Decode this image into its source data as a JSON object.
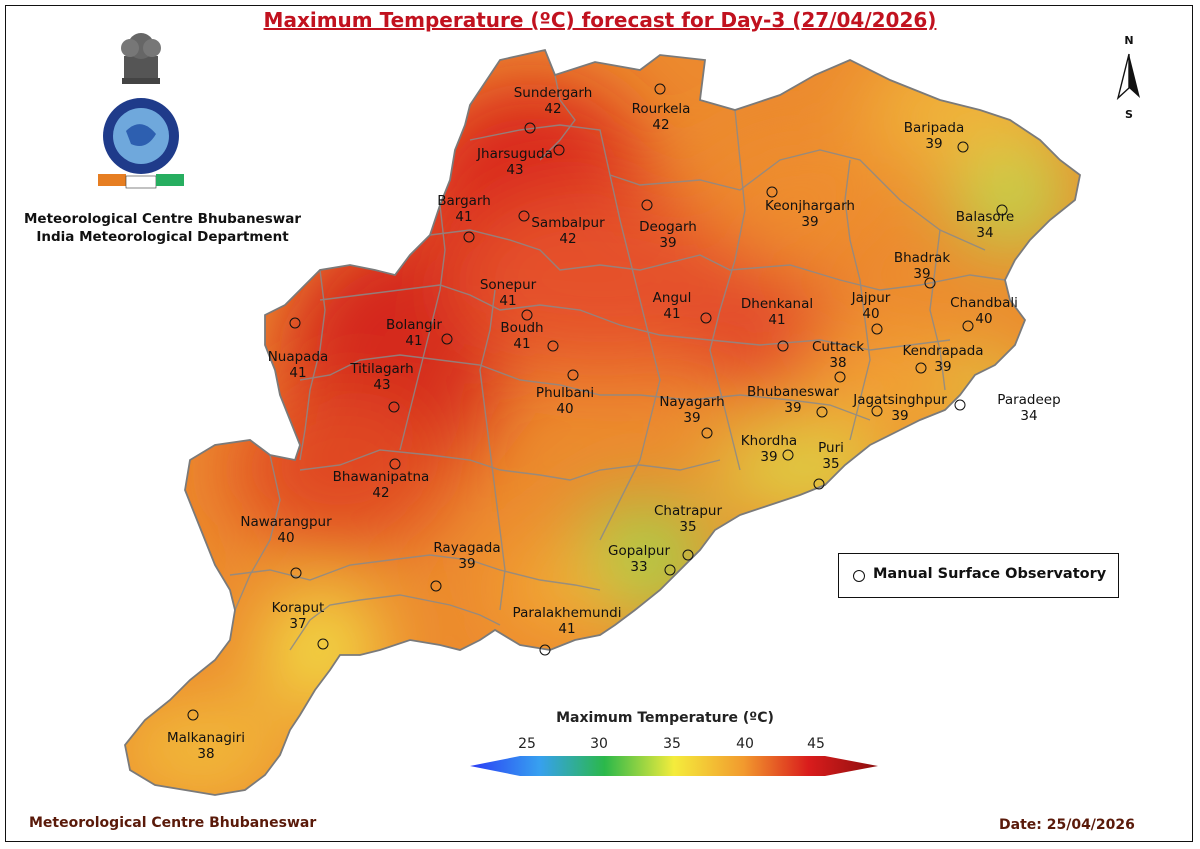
{
  "title": "Maximum Temperature (ºC) forecast for Day-3 (27/04/2026)",
  "organization": {
    "line1": "Meteorological Centre Bhubaneswar",
    "line2": "India Meteorological Department"
  },
  "footer": {
    "left": "Meteorological Centre Bhubaneswar",
    "right": "Date: 25/04/2026"
  },
  "north_arrow": {
    "top": "N",
    "bottom": "S"
  },
  "legend": {
    "symbol_label": "Manual Surface Observatory"
  },
  "colorbar": {
    "title": "Maximum Temperature (ºC)",
    "ticks": [
      "25",
      "30",
      "35",
      "40",
      "45"
    ],
    "colors": [
      "#2a3cf5",
      "#37a0f0",
      "#2bb84a",
      "#f4ec3c",
      "#f29a2e",
      "#d91c1c",
      "#8c0f0f"
    ]
  },
  "stations": [
    {
      "name": "Sundergarh",
      "temp": "42"
    },
    {
      "name": "Rourkela",
      "temp": "42"
    },
    {
      "name": "Jharsuguda",
      "temp": "43"
    },
    {
      "name": "Bargarh",
      "temp": "41"
    },
    {
      "name": "Sambalpur",
      "temp": "42"
    },
    {
      "name": "Deogarh",
      "temp": "39"
    },
    {
      "name": "Keonjhargarh",
      "temp": "39"
    },
    {
      "name": "Baripada",
      "temp": "39"
    },
    {
      "name": "Balasore",
      "temp": "34"
    },
    {
      "name": "Bhadrak",
      "temp": "39"
    },
    {
      "name": "Chandbali",
      "temp": "40"
    },
    {
      "name": "Sonepur",
      "temp": "41"
    },
    {
      "name": "Bolangir",
      "temp": "41"
    },
    {
      "name": "Boudh",
      "temp": "41"
    },
    {
      "name": "Angul",
      "temp": "41"
    },
    {
      "name": "Dhenkanal",
      "temp": "41"
    },
    {
      "name": "Jajpur",
      "temp": "40"
    },
    {
      "name": "Cuttack",
      "temp": "38"
    },
    {
      "name": "Kendrapada",
      "temp": "39"
    },
    {
      "name": "Nuapada",
      "temp": "41"
    },
    {
      "name": "Titilagarh",
      "temp": "43"
    },
    {
      "name": "Phulbani",
      "temp": "40"
    },
    {
      "name": "Nayagarh",
      "temp": "39"
    },
    {
      "name": "Bhubaneswar",
      "temp": "39"
    },
    {
      "name": "Jagatsinghpur",
      "temp": "39"
    },
    {
      "name": "Paradeep",
      "temp": "34"
    },
    {
      "name": "Khordha",
      "temp": "39"
    },
    {
      "name": "Puri",
      "temp": "35"
    },
    {
      "name": "Bhawanipatna",
      "temp": "42"
    },
    {
      "name": "Nawarangpur",
      "temp": "40"
    },
    {
      "name": "Chatrapur",
      "temp": "35"
    },
    {
      "name": "Rayagada",
      "temp": "39"
    },
    {
      "name": "Gopalpur",
      "temp": "33"
    },
    {
      "name": "Koraput",
      "temp": "37"
    },
    {
      "name": "Paralakhemundi",
      "temp": "41"
    },
    {
      "name": "Malkanagiri",
      "temp": "38"
    }
  ]
}
